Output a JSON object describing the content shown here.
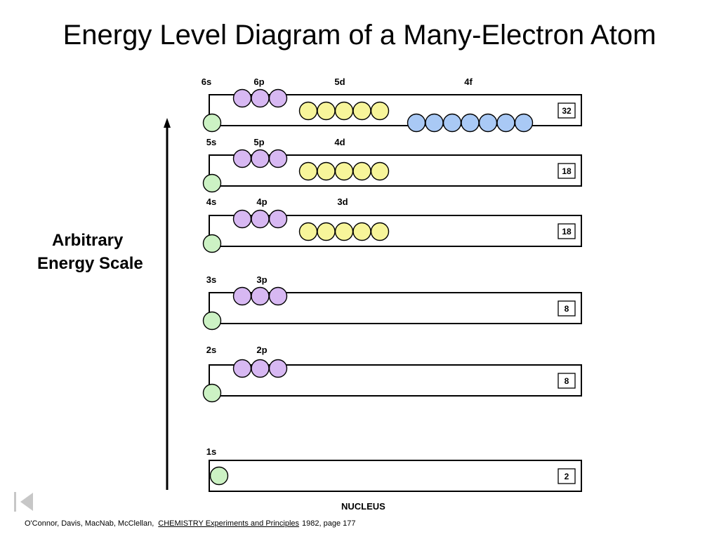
{
  "title": "Energy Level Diagram of a Many-Electron Atom",
  "axis_label_line1": "Arbitrary",
  "axis_label_line2": "Energy Scale",
  "nucleus_label": "NUCLEUS",
  "citation": {
    "authors": "O'Connor, Davis, MacNab, McClellan,",
    "book": "CHEMISTRY Experiments and Principles",
    "details": "1982, page 177"
  },
  "colors": {
    "s": "#ccf2c4",
    "p": "#d7b8f2",
    "d": "#f7f59a",
    "f": "#a9c9f5"
  },
  "levels": [
    {
      "capacity": "32",
      "sublevels": [
        {
          "label": "6s",
          "type": "s",
          "count": 1
        },
        {
          "label": "6p",
          "type": "p",
          "count": 3
        },
        {
          "label": "5d",
          "type": "d",
          "count": 5
        },
        {
          "label": "4f",
          "type": "f",
          "count": 7
        }
      ]
    },
    {
      "capacity": "18",
      "sublevels": [
        {
          "label": "5s",
          "type": "s",
          "count": 1
        },
        {
          "label": "5p",
          "type": "p",
          "count": 3
        },
        {
          "label": "4d",
          "type": "d",
          "count": 5
        }
      ]
    },
    {
      "capacity": "18",
      "sublevels": [
        {
          "label": "4s",
          "type": "s",
          "count": 1
        },
        {
          "label": "4p",
          "type": "p",
          "count": 3
        },
        {
          "label": "3d",
          "type": "d",
          "count": 5
        }
      ]
    },
    {
      "capacity": "8",
      "sublevels": [
        {
          "label": "3s",
          "type": "s",
          "count": 1
        },
        {
          "label": "3p",
          "type": "p",
          "count": 3
        }
      ]
    },
    {
      "capacity": "8",
      "sublevels": [
        {
          "label": "2s",
          "type": "s",
          "count": 1
        },
        {
          "label": "2p",
          "type": "p",
          "count": 3
        }
      ]
    },
    {
      "capacity": "2",
      "sublevels": [
        {
          "label": "1s",
          "type": "s",
          "count": 1
        }
      ]
    }
  ]
}
